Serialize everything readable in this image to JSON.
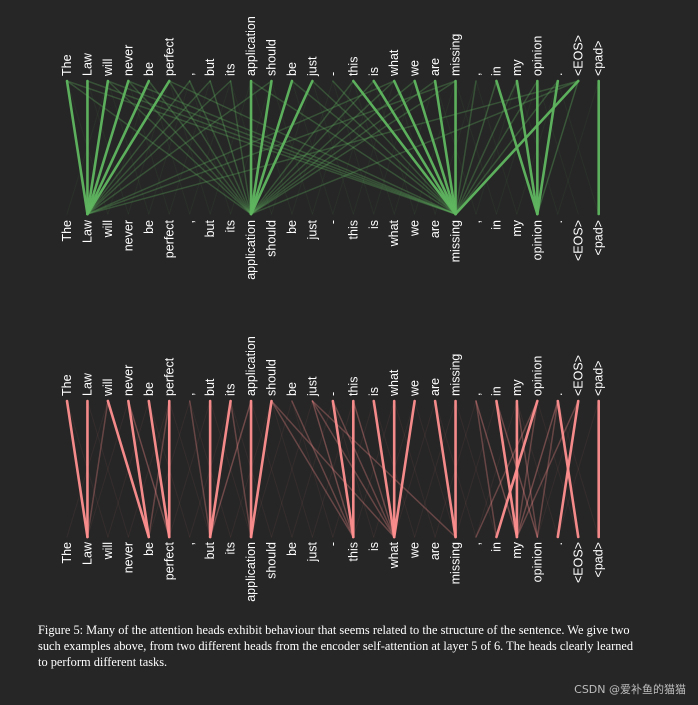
{
  "tokens": [
    "The",
    "Law",
    "will",
    "never",
    "be",
    "perfect",
    ",",
    "but",
    "its",
    "application",
    "should",
    "be",
    "just",
    "-",
    "this",
    "is",
    "what",
    "we",
    "are",
    "missing",
    ",",
    "in",
    "my",
    "opinion",
    ".",
    "<EOS>",
    "<pad>"
  ],
  "colors": {
    "background": "#262626",
    "text": "#ffffff",
    "head_top": "#5fb65f",
    "head_bottom": "#ff8f8f"
  },
  "attention_heads": [
    {
      "name": "head-a",
      "color": "#5fb65f",
      "strong": [
        [
          0,
          1
        ],
        [
          1,
          1
        ],
        [
          2,
          1
        ],
        [
          3,
          1
        ],
        [
          4,
          1
        ],
        [
          5,
          1
        ],
        [
          9,
          9
        ],
        [
          10,
          9
        ],
        [
          11,
          9
        ],
        [
          12,
          9
        ],
        [
          14,
          19
        ],
        [
          15,
          19
        ],
        [
          16,
          19
        ],
        [
          17,
          19
        ],
        [
          18,
          19
        ],
        [
          19,
          19
        ],
        [
          21,
          23
        ],
        [
          22,
          23
        ],
        [
          23,
          23
        ],
        [
          24,
          23
        ],
        [
          25,
          19
        ],
        [
          26,
          26
        ]
      ],
      "weak": [
        [
          0,
          9
        ],
        [
          2,
          9
        ],
        [
          3,
          9
        ],
        [
          5,
          9
        ],
        [
          7,
          9
        ],
        [
          8,
          9
        ],
        [
          1,
          19
        ],
        [
          9,
          19
        ],
        [
          13,
          19
        ],
        [
          20,
          19
        ],
        [
          7,
          1
        ],
        [
          8,
          1
        ],
        [
          10,
          1
        ],
        [
          6,
          1
        ],
        [
          6,
          9
        ],
        [
          12,
          19
        ],
        [
          11,
          19
        ],
        [
          23,
          19
        ],
        [
          24,
          19
        ],
        [
          4,
          9
        ],
        [
          0,
          19
        ],
        [
          2,
          19
        ],
        [
          14,
          9
        ],
        [
          15,
          9
        ],
        [
          16,
          9
        ],
        [
          17,
          9
        ],
        [
          18,
          9
        ],
        [
          25,
          9
        ],
        [
          25,
          1
        ],
        [
          25,
          23
        ],
        [
          21,
          19
        ],
        [
          22,
          19
        ],
        [
          19,
          9
        ],
        [
          19,
          1
        ],
        [
          16,
          1
        ],
        [
          5,
          19
        ],
        [
          3,
          19
        ]
      ]
    },
    {
      "name": "head-b",
      "color": "#ff8f8f",
      "strong": [
        [
          0,
          1
        ],
        [
          1,
          1
        ],
        [
          2,
          4
        ],
        [
          3,
          4
        ],
        [
          4,
          5
        ],
        [
          5,
          5
        ],
        [
          7,
          7
        ],
        [
          8,
          7
        ],
        [
          9,
          9
        ],
        [
          10,
          9
        ],
        [
          13,
          14
        ],
        [
          14,
          14
        ],
        [
          15,
          16
        ],
        [
          16,
          16
        ],
        [
          17,
          16
        ],
        [
          18,
          19
        ],
        [
          19,
          19
        ],
        [
          21,
          22
        ],
        [
          22,
          22
        ],
        [
          23,
          21
        ],
        [
          24,
          25
        ],
        [
          25,
          24
        ],
        [
          26,
          26
        ]
      ],
      "weak": [
        [
          10,
          14
        ],
        [
          11,
          14
        ],
        [
          12,
          14
        ],
        [
          13,
          16
        ],
        [
          14,
          16
        ],
        [
          10,
          16
        ],
        [
          12,
          16
        ],
        [
          20,
          22
        ],
        [
          21,
          23
        ],
        [
          22,
          23
        ],
        [
          23,
          22
        ],
        [
          24,
          22
        ],
        [
          25,
          22
        ],
        [
          23,
          20
        ],
        [
          2,
          1
        ],
        [
          5,
          4
        ],
        [
          8,
          9
        ],
        [
          20,
          21
        ],
        [
          24,
          23
        ],
        [
          9,
          7
        ],
        [
          12,
          19
        ],
        [
          3,
          5
        ],
        [
          6,
          7
        ]
      ]
    }
  ],
  "caption": "Figure 5: Many of the attention heads exhibit behaviour that seems related to the structure of the sentence. We give two such examples above, from two different heads from the encoder self-attention at layer 5 of 6. The heads clearly learned to perform different tasks.",
  "watermark": "CSDN @爱补鱼的猫猫"
}
